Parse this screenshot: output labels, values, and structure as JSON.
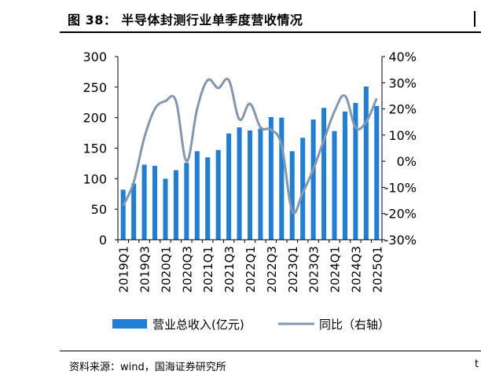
{
  "header": {
    "title": "图 38：  半导体封测行业单季度营收情况"
  },
  "footer": {
    "source": "资料来源：wind，国海证券研究所",
    "edge_text": "t"
  },
  "chart_data": {
    "type": "bar",
    "categories": [
      "2019Q1",
      "2019Q2",
      "2019Q3",
      "2019Q4",
      "2020Q1",
      "2020Q2",
      "2020Q3",
      "2020Q4",
      "2021Q1",
      "2021Q2",
      "2021Q3",
      "2021Q4",
      "2022Q1",
      "2022Q2",
      "2022Q3",
      "2022Q4",
      "2023Q1",
      "2023Q2",
      "2023Q3",
      "2023Q4",
      "2024Q1",
      "2024Q2",
      "2024Q3",
      "2024Q4",
      "2025Q1"
    ],
    "tick_labels": [
      "2019Q1",
      "2019Q3",
      "2020Q1",
      "2020Q3",
      "2021Q1",
      "2021Q3",
      "2022Q1",
      "2022Q3",
      "2023Q1",
      "2023Q3",
      "2024Q1",
      "2024Q3",
      "2025Q1"
    ],
    "series": [
      {
        "name": "营业总收入(亿元)",
        "type": "bar",
        "axis": "left",
        "color": "#1f7fd6",
        "values": [
          82,
          92,
          123,
          121,
          100,
          114,
          126,
          145,
          135,
          147,
          174,
          184,
          179,
          182,
          201,
          200,
          145,
          167,
          197,
          216,
          178,
          210,
          224,
          251,
          219
        ]
      },
      {
        "name": "同比（右轴）",
        "type": "line",
        "axis": "right",
        "color": "#8497b0",
        "values": [
          -17,
          -8,
          9,
          20,
          23,
          23,
          0,
          20,
          31,
          28,
          31,
          16,
          22,
          13,
          12,
          6,
          -19,
          -12,
          -3,
          8,
          19,
          25,
          13,
          15,
          24
        ]
      }
    ],
    "y_left": {
      "min": 0,
      "max": 300,
      "step": 50,
      "ticks": [
        "0",
        "50",
        "100",
        "150",
        "200",
        "250",
        "300"
      ]
    },
    "y_right": {
      "min": -30,
      "max": 40,
      "step": 10,
      "ticks": [
        "-30%",
        "-20%",
        "-10%",
        "0%",
        "10%",
        "20%",
        "30%",
        "40%"
      ]
    },
    "grid": false,
    "legend": {
      "position": "bottom",
      "items": [
        "营业总收入(亿元)",
        "同比（右轴）"
      ]
    }
  }
}
